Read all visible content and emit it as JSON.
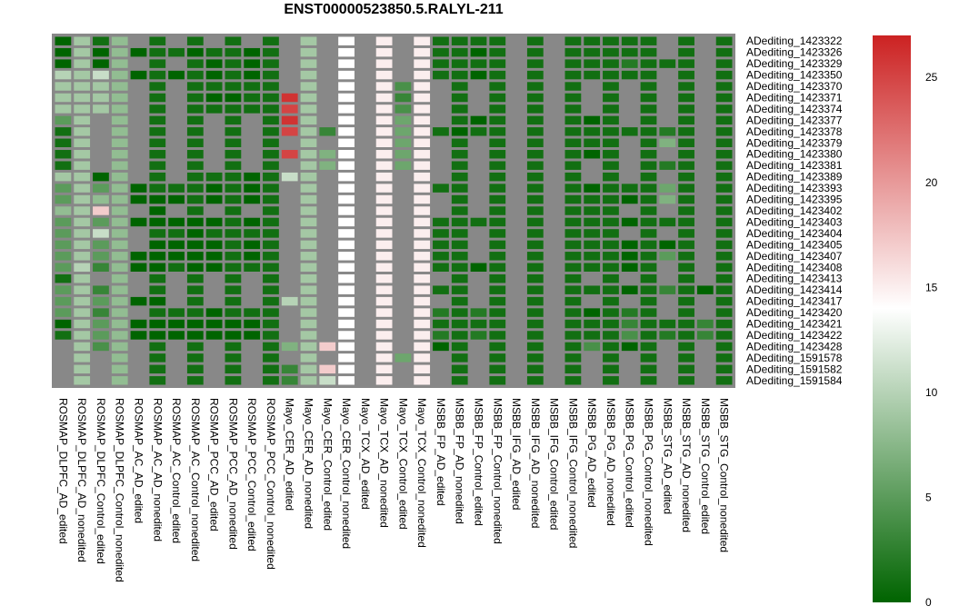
{
  "chart_data": {
    "type": "heatmap",
    "title": "ENST00000523850.5.RALYL-211",
    "rows": [
      "ADediting_1423322",
      "ADediting_1423326",
      "ADediting_1423329",
      "ADediting_1423350",
      "ADediting_1423370",
      "ADediting_1423371",
      "ADediting_1423374",
      "ADediting_1423377",
      "ADediting_1423378",
      "ADediting_1423379",
      "ADediting_1423380",
      "ADediting_1423381",
      "ADediting_1423389",
      "ADediting_1423393",
      "ADediting_1423395",
      "ADediting_1423402",
      "ADediting_1423403",
      "ADediting_1423404",
      "ADediting_1423405",
      "ADediting_1423407",
      "ADediting_1423408",
      "ADediting_1423413",
      "ADediting_1423414",
      "ADediting_1423417",
      "ADediting_1423420",
      "ADediting_1423421",
      "ADediting_1423422",
      "ADediting_1423428",
      "ADediting_1591578",
      "ADediting_1591582",
      "ADediting_1591584"
    ],
    "columns": [
      "ROSMAP_DLPFC_AD_edited",
      "ROSMAP_DLPFC_AD_nonedited",
      "ROSMAP_DLPFC_Control_edited",
      "ROSMAP_DLPFC_Control_nonedited",
      "ROSMAP_AC_AD_edited",
      "ROSMAP_AC_AD_nonedited",
      "ROSMAP_AC_Control_edited",
      "ROSMAP_AC_Control_nonedited",
      "ROSMAP_PCC_AD_edited",
      "ROSMAP_PCC_AD_nonedited",
      "ROSMAP_PCC_Control_edited",
      "ROSMAP_PCC_Control_nonedited",
      "Mayo_CER_AD_edited",
      "Mayo_CER_AD_nonedited",
      "Mayo_CER_Control_edited",
      "Mayo_CER_Control_nonedited",
      "Mayo_TCX_AD_edited",
      "Mayo_TCX_AD_nonedited",
      "Mayo_TCX_Control_edited",
      "Mayo_TCX_Control_nonedited",
      "MSBB_FP_AD_edited",
      "MSBB_FP_AD_nonedited",
      "MSBB_FP_Control_edited",
      "MSBB_FP_Control_nonedited",
      "MSBB_IFG_AD_edited",
      "MSBB_IFG_AD_nonedited",
      "MSBB_IFG_Control_edited",
      "MSBB_IFG_Control_nonedited",
      "MSBB_PG_AD_edited",
      "MSBB_PG_AD_nonedited",
      "MSBB_PG_Control_edited",
      "MSBB_PG_Control_nonedited",
      "MSBB_STG_AD_edited",
      "MSBB_STG_AD_nonedited",
      "MSBB_STG_Control_edited",
      "MSBB_STG_Control_nonedited"
    ],
    "values": [
      [
        0,
        9,
        1,
        8,
        null,
        1,
        null,
        1,
        null,
        1,
        null,
        1,
        null,
        9,
        null,
        14,
        null,
        15,
        null,
        15,
        1,
        1,
        1,
        1,
        null,
        1,
        null,
        1,
        1,
        1,
        1,
        1,
        null,
        1,
        null,
        1
      ],
      [
        0,
        9,
        0,
        8,
        0,
        1,
        1,
        0,
        1,
        1,
        0,
        1,
        null,
        9,
        null,
        14,
        null,
        15,
        null,
        15,
        1,
        1,
        0,
        1,
        null,
        1,
        null,
        1,
        1,
        1,
        1,
        1,
        null,
        1,
        null,
        1
      ],
      [
        0,
        9,
        0,
        8,
        null,
        1,
        null,
        1,
        0,
        1,
        0,
        1,
        null,
        9,
        null,
        14,
        null,
        15,
        null,
        15,
        1,
        1,
        1,
        1,
        null,
        1,
        null,
        1,
        1,
        1,
        2,
        1,
        1,
        1,
        null,
        1
      ],
      [
        10,
        9,
        11,
        8,
        0,
        1,
        0,
        1,
        0,
        1,
        0,
        1,
        null,
        9,
        null,
        14,
        null,
        15,
        null,
        15,
        1,
        1,
        0,
        1,
        null,
        1,
        null,
        1,
        1,
        1,
        1,
        1,
        null,
        1,
        null,
        1
      ],
      [
        9,
        9,
        9,
        8,
        null,
        1,
        null,
        1,
        1,
        1,
        1,
        1,
        null,
        9,
        null,
        14,
        null,
        15,
        4,
        15,
        null,
        1,
        null,
        1,
        null,
        1,
        null,
        1,
        null,
        1,
        null,
        1,
        null,
        1,
        null,
        1
      ],
      [
        9,
        9,
        9,
        8,
        null,
        1,
        null,
        1,
        0,
        0,
        1,
        1,
        26,
        9,
        null,
        14,
        null,
        15,
        3,
        15,
        null,
        1,
        null,
        1,
        null,
        1,
        null,
        1,
        null,
        1,
        null,
        1,
        null,
        1,
        null,
        1
      ],
      [
        9,
        9,
        9,
        8,
        null,
        1,
        null,
        1,
        1,
        1,
        1,
        1,
        25,
        9,
        null,
        14,
        null,
        15,
        4,
        15,
        null,
        1,
        null,
        1,
        null,
        1,
        null,
        1,
        null,
        1,
        null,
        1,
        null,
        1,
        null,
        1
      ],
      [
        5,
        9,
        null,
        8,
        null,
        1,
        null,
        1,
        null,
        1,
        null,
        1,
        26,
        9,
        null,
        14,
        null,
        15,
        6,
        15,
        null,
        1,
        0,
        1,
        null,
        1,
        null,
        1,
        0,
        1,
        null,
        1,
        null,
        1,
        null,
        1
      ],
      [
        1,
        9,
        null,
        8,
        null,
        1,
        null,
        1,
        null,
        1,
        null,
        1,
        25,
        9,
        3,
        14,
        null,
        15,
        6,
        15,
        1,
        0,
        1,
        1,
        null,
        1,
        null,
        1,
        1,
        1,
        1,
        1,
        2,
        1,
        null,
        1
      ],
      [
        1,
        9,
        null,
        8,
        null,
        1,
        null,
        1,
        null,
        1,
        null,
        1,
        null,
        9,
        null,
        14,
        null,
        15,
        6,
        15,
        null,
        1,
        null,
        1,
        null,
        1,
        null,
        1,
        1,
        1,
        null,
        1,
        7,
        1,
        null,
        1
      ],
      [
        1,
        9,
        null,
        8,
        null,
        1,
        null,
        1,
        null,
        1,
        null,
        1,
        25,
        9,
        7,
        14,
        null,
        15,
        6,
        15,
        null,
        1,
        null,
        1,
        null,
        1,
        null,
        1,
        0,
        1,
        null,
        1,
        null,
        1,
        null,
        1
      ],
      [
        1,
        9,
        null,
        8,
        null,
        1,
        null,
        1,
        null,
        1,
        null,
        1,
        null,
        9,
        7,
        14,
        null,
        15,
        6,
        15,
        null,
        1,
        null,
        1,
        null,
        1,
        null,
        1,
        null,
        1,
        null,
        1,
        2,
        1,
        null,
        1
      ],
      [
        9,
        9,
        0,
        8,
        null,
        1,
        null,
        1,
        1,
        1,
        0,
        1,
        11,
        9,
        null,
        14,
        null,
        15,
        null,
        15,
        null,
        1,
        null,
        1,
        null,
        1,
        null,
        1,
        null,
        1,
        null,
        1,
        null,
        1,
        null,
        1
      ],
      [
        5,
        9,
        5,
        8,
        0,
        1,
        1,
        1,
        0,
        1,
        0,
        1,
        null,
        9,
        null,
        14,
        null,
        15,
        null,
        15,
        1,
        1,
        null,
        1,
        null,
        1,
        null,
        1,
        0,
        1,
        1,
        1,
        6,
        1,
        null,
        1
      ],
      [
        5,
        9,
        8,
        8,
        0,
        0,
        0,
        1,
        0,
        1,
        0,
        1,
        null,
        9,
        null,
        14,
        null,
        15,
        null,
        15,
        null,
        1,
        null,
        1,
        null,
        1,
        null,
        1,
        1,
        1,
        0,
        1,
        7,
        1,
        null,
        1
      ],
      [
        8,
        9,
        17,
        8,
        null,
        0,
        null,
        1,
        null,
        1,
        null,
        1,
        null,
        9,
        null,
        14,
        null,
        15,
        null,
        15,
        null,
        1,
        null,
        1,
        null,
        1,
        null,
        1,
        1,
        1,
        null,
        1,
        null,
        1,
        null,
        1
      ],
      [
        5,
        9,
        5,
        8,
        0,
        0,
        0,
        0,
        0,
        1,
        0,
        1,
        null,
        9,
        null,
        14,
        null,
        15,
        null,
        15,
        1,
        1,
        1,
        1,
        null,
        1,
        null,
        1,
        1,
        1,
        0,
        1,
        1,
        1,
        null,
        1
      ],
      [
        5,
        9,
        11,
        8,
        null,
        1,
        1,
        0,
        1,
        1,
        1,
        1,
        null,
        9,
        null,
        14,
        null,
        15,
        null,
        15,
        1,
        1,
        null,
        1,
        null,
        1,
        null,
        1,
        1,
        1,
        null,
        1,
        null,
        1,
        null,
        1
      ],
      [
        5,
        9,
        5,
        8,
        null,
        0,
        0,
        0,
        0,
        1,
        0,
        1,
        null,
        9,
        null,
        14,
        null,
        15,
        null,
        15,
        1,
        1,
        null,
        1,
        null,
        1,
        null,
        1,
        1,
        1,
        0,
        1,
        0,
        1,
        null,
        1
      ],
      [
        5,
        9,
        5,
        8,
        0,
        0,
        0,
        0,
        0,
        1,
        0,
        1,
        null,
        9,
        null,
        14,
        null,
        15,
        null,
        15,
        1,
        1,
        null,
        1,
        null,
        1,
        null,
        1,
        1,
        1,
        0,
        1,
        5,
        1,
        null,
        1
      ],
      [
        5,
        10,
        3,
        8,
        0,
        0,
        1,
        0,
        0,
        1,
        1,
        1,
        null,
        9,
        null,
        14,
        null,
        15,
        null,
        15,
        1,
        1,
        0,
        1,
        null,
        1,
        null,
        1,
        1,
        1,
        0,
        1,
        null,
        1,
        null,
        1
      ],
      [
        1,
        9,
        null,
        8,
        null,
        1,
        null,
        1,
        null,
        1,
        null,
        1,
        null,
        9,
        null,
        14,
        null,
        15,
        null,
        15,
        null,
        1,
        null,
        1,
        null,
        1,
        null,
        1,
        null,
        1,
        null,
        1,
        null,
        1,
        null,
        1
      ],
      [
        5,
        9,
        3,
        8,
        null,
        1,
        null,
        1,
        null,
        1,
        null,
        1,
        null,
        9,
        null,
        14,
        null,
        15,
        null,
        15,
        1,
        1,
        null,
        1,
        null,
        1,
        null,
        1,
        1,
        1,
        0,
        1,
        3,
        1,
        0,
        1
      ],
      [
        5,
        9,
        5,
        8,
        0,
        0,
        null,
        1,
        null,
        1,
        null,
        1,
        10,
        9,
        null,
        14,
        null,
        15,
        null,
        15,
        null,
        1,
        null,
        1,
        null,
        1,
        null,
        1,
        null,
        1,
        null,
        1,
        null,
        1,
        null,
        1
      ],
      [
        5,
        9,
        3,
        8,
        null,
        1,
        1,
        1,
        0,
        1,
        1,
        1,
        null,
        9,
        null,
        14,
        null,
        15,
        null,
        15,
        2,
        1,
        2,
        1,
        null,
        1,
        null,
        1,
        0,
        1,
        2,
        1,
        null,
        1,
        null,
        1
      ],
      [
        0,
        9,
        5,
        8,
        0,
        0,
        0,
        0,
        0,
        0,
        0,
        1,
        null,
        9,
        null,
        14,
        null,
        15,
        null,
        15,
        1,
        1,
        1,
        1,
        null,
        1,
        null,
        1,
        1,
        1,
        3,
        1,
        1,
        1,
        3,
        1
      ],
      [
        1,
        9,
        5,
        8,
        0,
        0,
        0,
        0,
        0,
        0,
        0,
        1,
        null,
        9,
        null,
        14,
        null,
        15,
        null,
        15,
        2,
        1,
        2,
        1,
        null,
        1,
        null,
        1,
        1,
        1,
        4,
        1,
        2,
        1,
        3,
        1
      ],
      [
        null,
        9,
        4,
        8,
        null,
        1,
        null,
        1,
        null,
        1,
        null,
        1,
        7,
        9,
        17,
        14,
        null,
        15,
        null,
        15,
        0,
        1,
        null,
        1,
        null,
        1,
        null,
        1,
        4,
        1,
        0,
        1,
        null,
        1,
        null,
        1
      ],
      [
        null,
        9,
        null,
        8,
        null,
        1,
        null,
        1,
        null,
        1,
        null,
        1,
        null,
        9,
        null,
        14,
        null,
        15,
        6,
        15,
        null,
        1,
        null,
        1,
        null,
        1,
        null,
        1,
        null,
        1,
        null,
        1,
        null,
        1,
        null,
        1
      ],
      [
        null,
        9,
        null,
        8,
        null,
        1,
        null,
        1,
        null,
        1,
        null,
        1,
        3,
        9,
        17,
        14,
        null,
        15,
        null,
        15,
        null,
        1,
        null,
        1,
        null,
        1,
        null,
        1,
        null,
        1,
        null,
        1,
        null,
        1,
        null,
        1
      ],
      [
        null,
        9,
        null,
        8,
        null,
        1,
        null,
        1,
        null,
        1,
        null,
        1,
        3,
        9,
        11,
        14,
        null,
        15,
        null,
        15,
        null,
        1,
        null,
        1,
        null,
        1,
        null,
        1,
        null,
        1,
        null,
        1,
        null,
        1,
        null,
        1
      ]
    ],
    "colorscale": {
      "min": 0,
      "max": 27,
      "low": "#006400",
      "mid": "#ffffff",
      "mid_value": 14,
      "high": "#cc2222"
    },
    "na_color": "#888888",
    "legend_ticks": [
      0,
      5,
      10,
      15,
      20,
      25
    ],
    "legend_position": "right"
  }
}
